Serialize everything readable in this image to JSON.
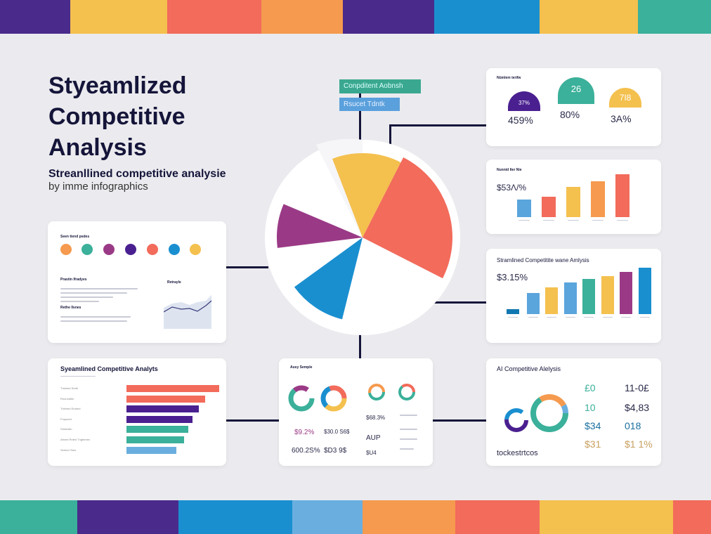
{
  "header": {
    "title_lines": [
      "Styeamlized",
      "Competitive",
      "Analysis"
    ],
    "subtitle": "Streanllined competitive analysie",
    "byline": "by imme infographics"
  },
  "tags": {
    "tag1": "Conpditent Aobnsh",
    "tag2": "Rsucet Tdntk"
  },
  "colors": {
    "purple": "#4a2a8a",
    "yellow": "#f4c04e",
    "coral": "#f26b5b",
    "orange": "#f59a4e",
    "blue": "#1a8fd0",
    "teal": "#3bb09a",
    "lightblue": "#6aaee0",
    "magenta": "#9a3a86"
  },
  "card_palette": {
    "title": "Seen tiend pedes",
    "section1": "Prastin Ifradyes",
    "section2": "Rethe Ilsnes",
    "chart_title": "Retrayle"
  },
  "card_bars": {
    "title": "Syeamlined Competitive Analyts",
    "rows": [
      "Tnidned Srefe",
      "Rnonnditin",
      "Tnelned Erdued",
      "Fnqnned",
      "Srilnesitn",
      "Afnnel Rnted Tnghenes",
      "Sertenl Tees"
    ]
  },
  "card_donuts": {
    "title": "Ausy Semple",
    "values": [
      "$9.2%",
      "600.2S%",
      "$30.0 S6$",
      "$D3 9$",
      "$68.3%",
      "AUP",
      "$U4"
    ]
  },
  "card_gauges": {
    "title": "Nümlem terifw",
    "gauges": [
      {
        "top": "37%",
        "value": "459%"
      },
      {
        "top": "26",
        "value": "80%"
      },
      {
        "top": "7I8",
        "value": "3A%"
      }
    ]
  },
  "card_bars2": {
    "title": "Nunnid Iter Nie",
    "value": "$53Λ/%"
  },
  "card_bars3": {
    "title": "Stramlined Competitite wane Amlysis",
    "value": "$3.15%"
  },
  "card_stats": {
    "title": "AI Competitive Alelysis",
    "stats": [
      "£0",
      "11-0£",
      "10",
      "$4,83",
      "$34",
      "018",
      "$31",
      "$1 1%"
    ],
    "footer": "tockestrtcos"
  }
}
